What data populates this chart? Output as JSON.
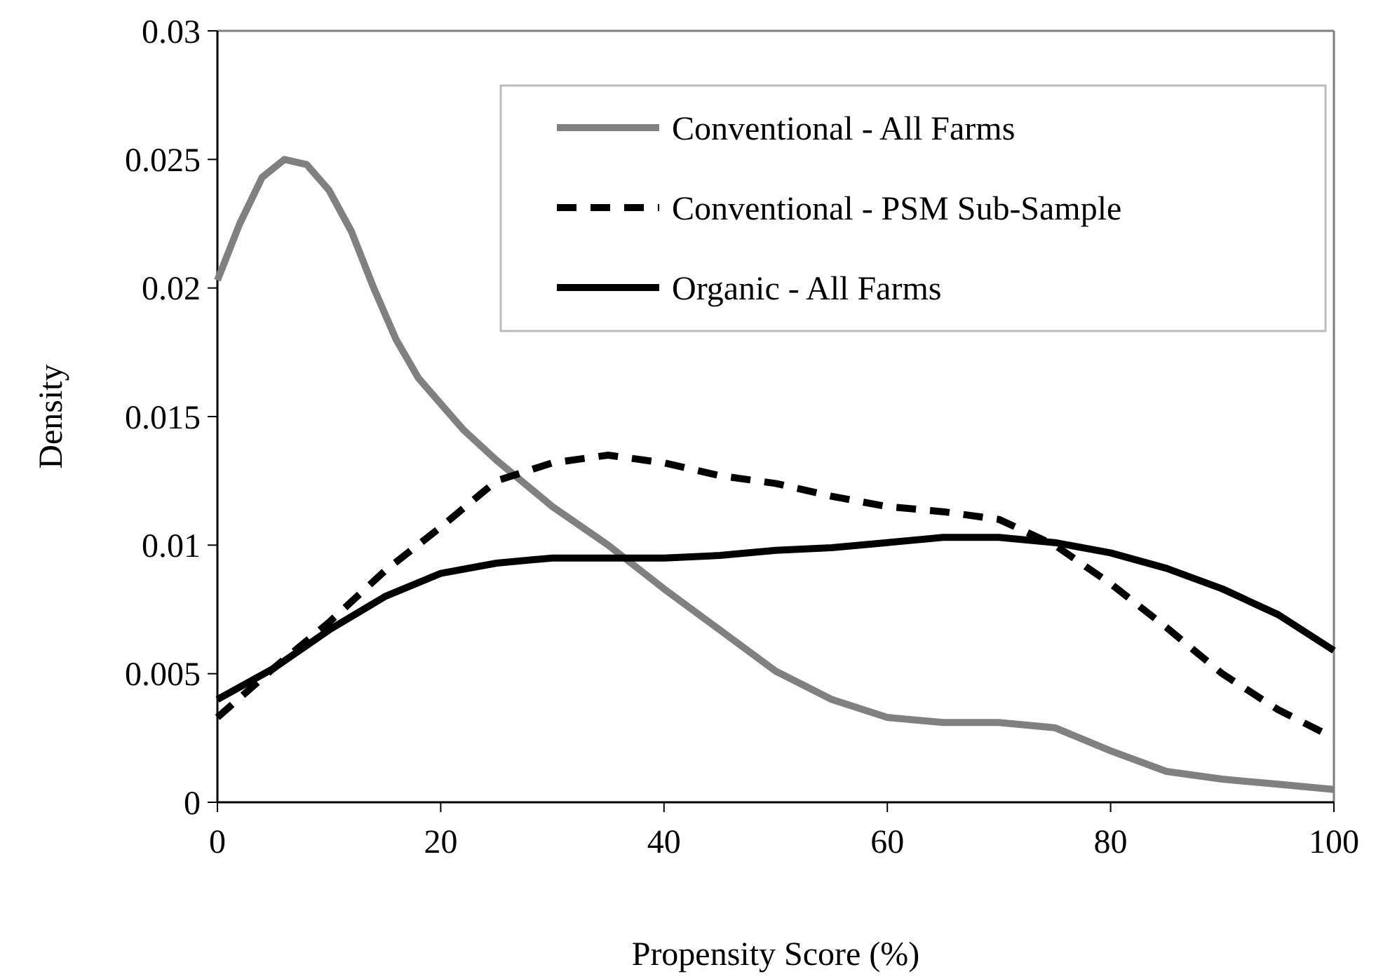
{
  "chart_data": {
    "type": "line",
    "xlabel": "Propensity Score (%)",
    "ylabel": "Density",
    "xlim": [
      0,
      100
    ],
    "xticks": [
      0,
      20,
      40,
      60,
      80,
      100
    ],
    "ylim": [
      0,
      0.03
    ],
    "yticks": [
      0,
      0.005,
      0.01,
      0.015,
      0.02,
      0.025,
      0.03
    ],
    "grid": false,
    "legend": "top right",
    "series": [
      {
        "name": "Conventional - All Farms",
        "color": "#808080",
        "line_style": "solid",
        "x": [
          0,
          2,
          4,
          6,
          8,
          10,
          12,
          14,
          16,
          18,
          20,
          22,
          25,
          30,
          35,
          40,
          45,
          50,
          55,
          60,
          65,
          70,
          75,
          80,
          85,
          90,
          95,
          100
        ],
        "values": [
          0.0203,
          0.0225,
          0.0243,
          0.025,
          0.0248,
          0.0238,
          0.0222,
          0.02,
          0.018,
          0.0165,
          0.0155,
          0.0145,
          0.0133,
          0.0115,
          0.01,
          0.0083,
          0.0067,
          0.0051,
          0.004,
          0.0033,
          0.0031,
          0.0031,
          0.0029,
          0.002,
          0.0012,
          0.0009,
          0.0007,
          0.0005
        ]
      },
      {
        "name": "Conventional - PSM Sub-Sample",
        "color": "#000000",
        "line_style": "dashed",
        "x": [
          0,
          5,
          10,
          15,
          20,
          25,
          30,
          35,
          40,
          45,
          50,
          55,
          60,
          65,
          70,
          75,
          80,
          85,
          90,
          95,
          100
        ],
        "values": [
          0.0033,
          0.0052,
          0.007,
          0.009,
          0.0107,
          0.0125,
          0.0132,
          0.0135,
          0.0132,
          0.0127,
          0.0124,
          0.0119,
          0.0115,
          0.0113,
          0.011,
          0.01,
          0.0085,
          0.0068,
          0.005,
          0.0036,
          0.0025
        ]
      },
      {
        "name": "Organic - All Farms",
        "color": "#000000",
        "line_style": "solid",
        "x": [
          0,
          5,
          10,
          15,
          20,
          25,
          30,
          35,
          40,
          45,
          50,
          55,
          60,
          65,
          70,
          75,
          80,
          85,
          90,
          95,
          100
        ],
        "values": [
          0.004,
          0.0052,
          0.0067,
          0.008,
          0.0089,
          0.0093,
          0.0095,
          0.0095,
          0.0095,
          0.0096,
          0.0098,
          0.0099,
          0.0101,
          0.0103,
          0.0103,
          0.0101,
          0.0097,
          0.0091,
          0.0083,
          0.0073,
          0.0059
        ]
      }
    ]
  }
}
